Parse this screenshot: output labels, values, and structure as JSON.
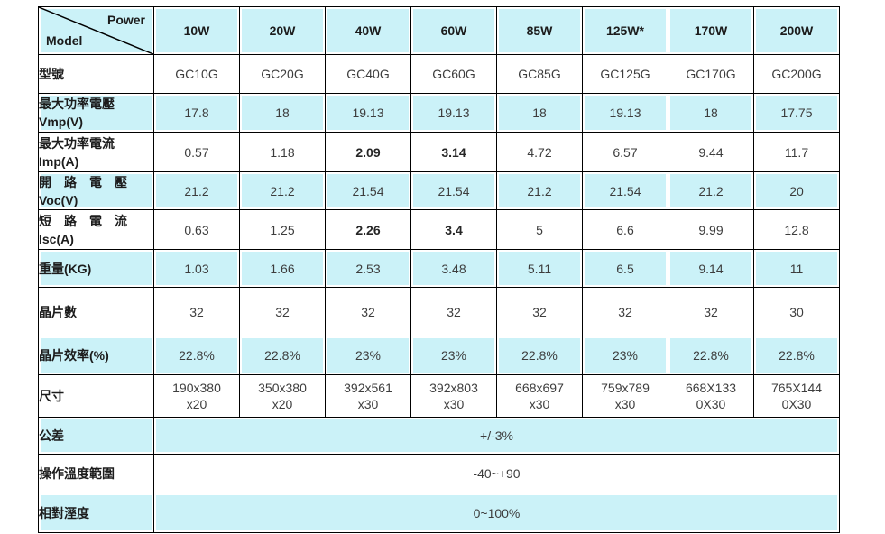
{
  "table": {
    "corner": {
      "power_label": "Power",
      "model_label": "Model"
    },
    "power_columns": [
      "10W",
      "20W",
      "40W",
      "60W",
      "85W",
      "125W*",
      "170W",
      "200W"
    ],
    "rows": [
      {
        "key": "model",
        "label": "型號",
        "shaded": false,
        "bold_values": [],
        "values": [
          "GC10G",
          "GC20G",
          "GC40G",
          "GC60G",
          "GC85G",
          "GC125G",
          "GC170G",
          "GC200G"
        ]
      },
      {
        "key": "vmp",
        "label": "最大功率電壓\nVmp(V)",
        "shaded": true,
        "bold_values": [],
        "values": [
          "17.8",
          "18",
          "19.13",
          "19.13",
          "18",
          "19.13",
          "18",
          "17.75"
        ]
      },
      {
        "key": "imp",
        "label": "最大功率電流\nImp(A)",
        "shaded": false,
        "bold_values": [
          2,
          3
        ],
        "values": [
          "0.57",
          "1.18",
          "2.09",
          "3.14",
          "4.72",
          "6.57",
          "9.44",
          "11.7"
        ]
      },
      {
        "key": "voc",
        "label": "開　路　電　壓\nVoc(V)",
        "shaded": true,
        "bold_values": [],
        "values": [
          "21.2",
          "21.2",
          "21.54",
          "21.54",
          "21.2",
          "21.54",
          "21.2",
          "20"
        ]
      },
      {
        "key": "isc",
        "label": "短　路　電　流\nIsc(A)",
        "shaded": false,
        "bold_values": [
          2,
          3
        ],
        "values": [
          "0.63",
          "1.25",
          "2.26",
          "3.4",
          "5",
          "6.6",
          "9.99",
          "12.8"
        ]
      },
      {
        "key": "weight",
        "label": "重量(KG)",
        "shaded": true,
        "bold_values": [],
        "values": [
          "1.03",
          "1.66",
          "2.53",
          "3.48",
          "5.11",
          "6.5",
          "9.14",
          "11"
        ]
      },
      {
        "key": "cell-count",
        "label": "晶片數",
        "shaded": false,
        "bold_values": [],
        "values": [
          "32",
          "32",
          "32",
          "32",
          "32",
          "32",
          "32",
          "30"
        ]
      },
      {
        "key": "cell-efficiency",
        "label": "晶片效率(%)",
        "shaded": true,
        "bold_values": [],
        "values": [
          "22.8%",
          "22.8%",
          "23%",
          "23%",
          "22.8%",
          "23%",
          "22.8%",
          "22.8%"
        ]
      },
      {
        "key": "size",
        "label": "尺寸",
        "shaded": false,
        "bold_values": [],
        "values": [
          "190x380\nx20",
          "350x380\nx20",
          "392x561\nx30",
          "392x803\nx30",
          "668x697\nx30",
          "759x789\nx30",
          "668X133\n0X30",
          "765X144\n0X30"
        ]
      }
    ],
    "span_rows": [
      {
        "key": "tolerance",
        "label": "公差",
        "value": "+/-3%",
        "shaded": true
      },
      {
        "key": "operating-temperature",
        "label": "操作溫度範圍",
        "value": "-40~+90",
        "shaded": false
      },
      {
        "key": "relative-humidity",
        "label": "相對溼度",
        "value": "0~100%",
        "shaded": true
      }
    ]
  },
  "colors": {
    "band": "#cbf2f8",
    "border": "#000000",
    "header_text": "#1c1c1c",
    "value_text": "#3d3d3d"
  }
}
